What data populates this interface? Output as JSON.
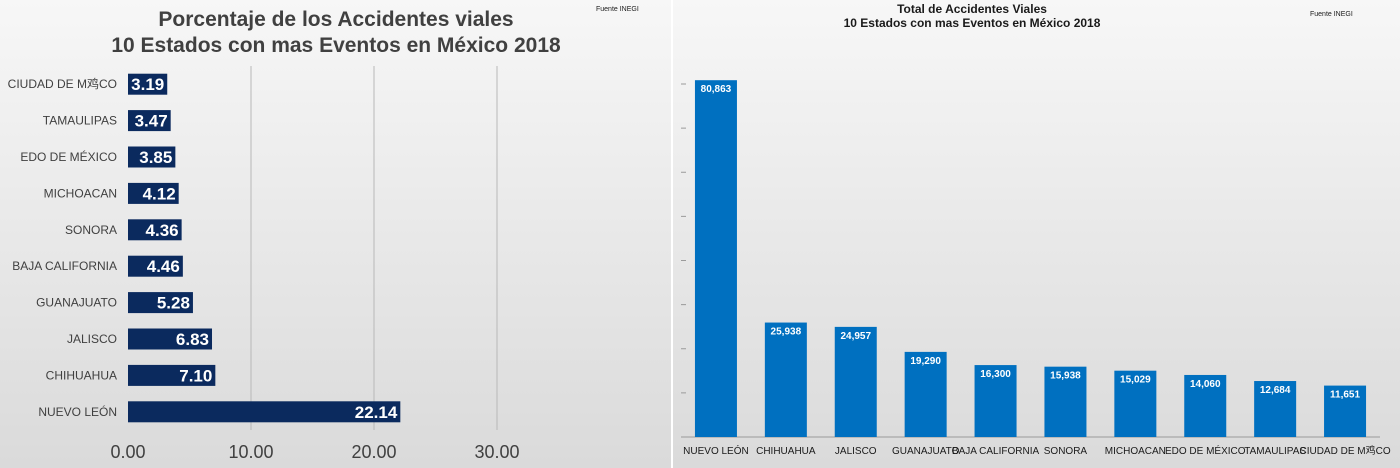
{
  "left_chart": {
    "title_line1": "Porcentaje de los Accidentes  viales",
    "title_line2": "10 Estados con mas Eventos en México 2018",
    "source": "Fuente INEGI",
    "colors": {
      "bar": "#0b2a5e",
      "grid": "#b8b8b8"
    }
  },
  "right_chart": {
    "title_line1": "Total de Accidentes Viales",
    "title_line2": "10 Estados con mas Eventos en México 2018",
    "source": "Fuente INEGI",
    "colors": {
      "bar": "#0070c0",
      "grid": "#9a9a9a"
    }
  },
  "chart_data": [
    {
      "type": "bar",
      "orientation": "horizontal",
      "title": "Porcentaje de los Accidentes  viales 10 Estados con mas Eventos en México 2018",
      "categories": [
        "CIUDAD DE M鸡CO",
        "TAMAULIPAS",
        "EDO DE MÉXICO",
        "MICHOACAN",
        "SONORA",
        "BAJA CALIFORNIA",
        "GUANAJUATO",
        "JALISCO",
        "CHIHUAHUA",
        "NUEVO LEÓN"
      ],
      "values": [
        3.19,
        3.47,
        3.85,
        4.12,
        4.36,
        4.46,
        5.28,
        6.83,
        7.1,
        22.14
      ],
      "value_labels": [
        "3.19",
        "3.47",
        "3.85",
        "4.12",
        "4.36",
        "4.46",
        "5.28",
        "6.83",
        "7.10",
        "22.14"
      ],
      "x_ticks": [
        "0.00",
        "10.00",
        "20.00",
        "30.00"
      ],
      "xlim": [
        0,
        30
      ],
      "grid": true,
      "annotations": [
        "Fuente INEGI"
      ]
    },
    {
      "type": "bar",
      "orientation": "vertical",
      "title": "Total de Accidentes Viales 10 Estados con mas Eventos en México 2018",
      "categories": [
        "NUEVO LEÓN",
        "CHIHUAHUA",
        "JALISCO",
        "GUANAJUATO",
        "BAJA CALIFORNIA",
        "SONORA",
        "MICHOACAN",
        "EDO DE MÉXICO",
        "TAMAULIPAS",
        "CIUDAD DE M鸡CO"
      ],
      "values": [
        80863,
        25938,
        24957,
        19290,
        16300,
        15938,
        15029,
        14060,
        12684,
        11651
      ],
      "value_labels": [
        "80,863",
        "25,938",
        "24,957",
        "19,290",
        "16,300",
        "15,938",
        "15,029",
        "14,060",
        "12,684",
        "11,651"
      ],
      "ylim": [
        0,
        80000
      ],
      "grid": true,
      "annotations": [
        "Fuente INEGI"
      ]
    }
  ]
}
